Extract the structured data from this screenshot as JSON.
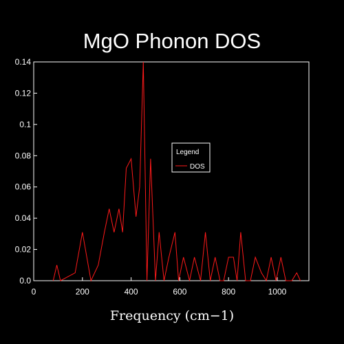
{
  "chart_data": {
    "type": "line",
    "title": "MgO Phonon DOS",
    "xlabel": "Frequency (cm−1)",
    "ylabel": "",
    "xlim": [
      0,
      1130
    ],
    "ylim": [
      0,
      0.14
    ],
    "xticks": [
      0,
      200,
      400,
      600,
      800,
      1000
    ],
    "xtick_labels": [
      "0",
      "200",
      "400",
      "600",
      "800",
      "1000"
    ],
    "yticks": [
      0,
      0.02,
      0.04,
      0.06,
      0.08,
      0.1,
      0.12,
      0.14
    ],
    "ytick_labels": [
      "0.0",
      "0.02",
      "0.04",
      "0.06",
      "0.08",
      "0.1",
      "0.12",
      "0.14"
    ],
    "grid": false,
    "legend": {
      "title": "Legend",
      "position": "center-right"
    },
    "colors": {
      "background": "#000000",
      "axes": "#ffffff",
      "series": "#ff1a1a"
    },
    "series": [
      {
        "name": "DOS",
        "x": [
          80,
          95,
          110,
          170,
          200,
          235,
          265,
          290,
          310,
          330,
          350,
          365,
          380,
          400,
          420,
          435,
          450,
          465,
          480,
          500,
          515,
          535,
          555,
          580,
          595,
          615,
          640,
          660,
          685,
          705,
          725,
          745,
          765,
          780,
          800,
          820,
          835,
          850,
          870,
          890,
          910,
          935,
          955,
          975,
          995,
          1015,
          1035,
          1060,
          1080,
          1095
        ],
        "y": [
          0.0,
          0.01,
          0.0,
          0.005,
          0.031,
          0.0,
          0.01,
          0.031,
          0.046,
          0.031,
          0.046,
          0.031,
          0.072,
          0.078,
          0.041,
          0.06,
          0.14,
          0.0,
          0.078,
          0.0,
          0.031,
          0.0,
          0.015,
          0.031,
          0.0,
          0.015,
          0.0,
          0.015,
          0.0,
          0.031,
          0.0,
          0.015,
          0.0,
          0.0,
          0.015,
          0.015,
          0.0,
          0.031,
          0.0,
          0.0,
          0.015,
          0.005,
          0.0,
          0.015,
          0.0,
          0.015,
          0.0,
          0.0,
          0.005,
          0.0
        ]
      }
    ]
  }
}
